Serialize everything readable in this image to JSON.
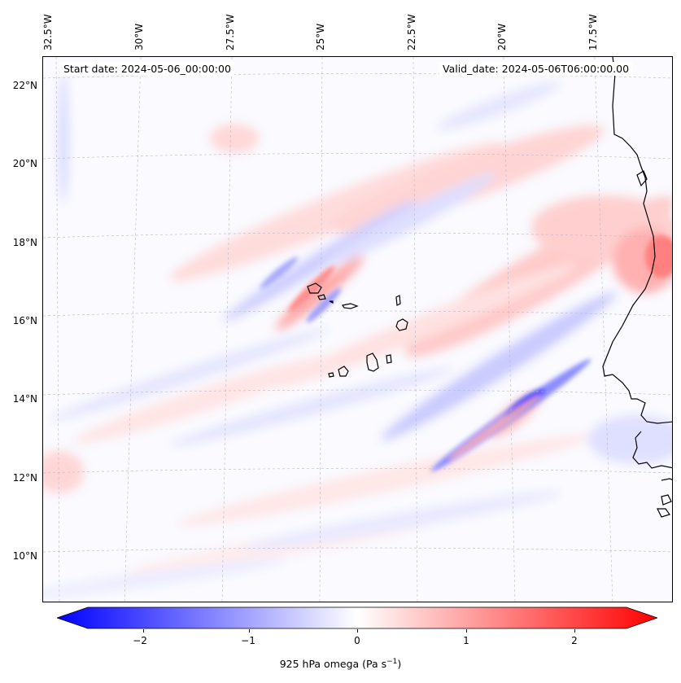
{
  "map": {
    "start_date": "Start date: 2024-05-06_00:00:00",
    "valid_date": "Valid_date: 2024-05-06T06:00:00.00",
    "longitude_labels": [
      "32.5°W",
      "30°W",
      "27.5°W",
      "25°W",
      "22.5°W",
      "20°W",
      "17.5°W"
    ],
    "latitude_labels": [
      "22°N",
      "20°N",
      "18°N",
      "16°N",
      "14°N",
      "12°N",
      "10°N"
    ],
    "field": "925 hPa omega",
    "colormap": "bwr",
    "colors": {
      "negative": "#0000ff",
      "zero": "#ffffff",
      "positive": "#ff0000",
      "coastline": "#000000"
    }
  },
  "colorbar": {
    "label_main": "925 hPa omega (Pa s",
    "label_exp": "−1",
    "label_close": ")",
    "ticks": [
      "−2",
      "−1",
      "0",
      "1",
      "2"
    ],
    "min": -2.6,
    "max": 2.6,
    "extend": "both"
  }
}
